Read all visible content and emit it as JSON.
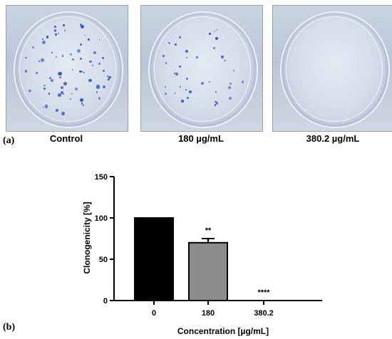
{
  "panel_a": {
    "label": "(a)",
    "photos": [
      {
        "caption": "Control",
        "colony_density": "high"
      },
      {
        "caption": "180 µg/mL",
        "colony_density": "medium"
      },
      {
        "caption": "380.2 µg/mL",
        "colony_density": "none"
      }
    ]
  },
  "panel_b": {
    "label": "(b)"
  },
  "chart_data": {
    "type": "bar",
    "categories": [
      "0",
      "180",
      "380.2"
    ],
    "values": [
      100,
      70,
      0
    ],
    "errors": [
      0,
      5,
      0
    ],
    "significance": [
      "",
      "**",
      "****"
    ],
    "bar_colors": [
      "#000000",
      "#8c8c8c",
      "#ffffff"
    ],
    "xlabel": "Concentration [µg/mL]",
    "ylabel": "Clonogenicity [%]",
    "ylim": [
      0,
      150
    ],
    "yticks": [
      "0",
      "50",
      "100",
      "150"
    ],
    "grid": false
  }
}
